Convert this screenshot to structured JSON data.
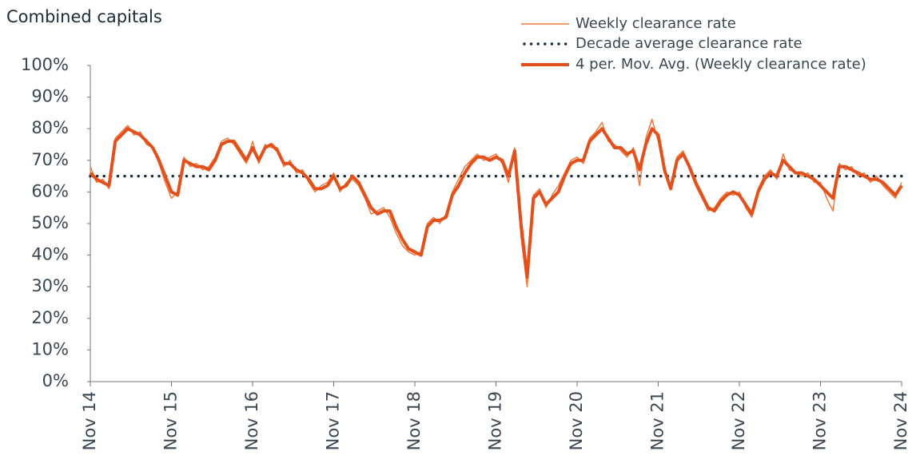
{
  "chart_data": {
    "type": "line",
    "title": "Combined capitals",
    "x": [
      0,
      4,
      8,
      12,
      16,
      20,
      24,
      28,
      32,
      36,
      40,
      44,
      48,
      52,
      56,
      60,
      64,
      68,
      72,
      76,
      80,
      84,
      88,
      92,
      96,
      100,
      104,
      108,
      112,
      116,
      120,
      124,
      128,
      132,
      136,
      140,
      144,
      148,
      152,
      156,
      160,
      164,
      168,
      172,
      176,
      180,
      184,
      188,
      192,
      196,
      200,
      204,
      208,
      212,
      216,
      220,
      224,
      228,
      232,
      236,
      240,
      244,
      248,
      252,
      256,
      260,
      264,
      268,
      272,
      276,
      280,
      284,
      288,
      292,
      296,
      300,
      304,
      308,
      312,
      316,
      320,
      324,
      328,
      332,
      336,
      340,
      344,
      348,
      352,
      356,
      360,
      364,
      368,
      372,
      376,
      380,
      384,
      388,
      392,
      396,
      400,
      404,
      408,
      412,
      416,
      420,
      424,
      428,
      432,
      436,
      440,
      444,
      448,
      452,
      456,
      460,
      464,
      468,
      472,
      476,
      480,
      484,
      488,
      492,
      496,
      500,
      504,
      508,
      512,
      516,
      520
    ],
    "series": [
      {
        "name": "Weekly clearance rate",
        "color": "#f07a3c",
        "width": 1.5,
        "values": [
          68,
          63,
          64,
          61,
          77,
          79,
          81,
          78,
          79,
          75,
          74,
          69,
          63,
          58,
          60,
          71,
          68,
          69,
          67,
          68,
          71,
          76,
          77,
          75,
          72,
          69,
          76,
          69,
          75,
          74,
          74,
          68,
          70,
          66,
          67,
          63,
          60,
          62,
          63,
          66,
          60,
          63,
          64,
          62,
          58,
          53,
          54,
          55,
          52,
          47,
          43,
          41,
          40,
          41,
          50,
          52,
          50,
          53,
          60,
          64,
          68,
          70,
          72,
          70,
          71,
          72,
          69,
          63,
          74,
          46,
          30,
          59,
          61,
          55,
          59,
          62,
          66,
          70,
          71,
          69,
          77,
          79,
          82,
          76,
          75,
          73,
          71,
          74,
          62,
          77,
          83,
          76,
          66,
          62,
          71,
          73,
          67,
          62,
          58,
          54,
          55,
          58,
          60,
          59,
          60,
          55,
          52,
          61,
          65,
          67,
          64,
          72,
          67,
          66,
          65,
          66,
          63,
          63,
          58,
          54,
          69,
          67,
          68,
          65,
          66,
          63,
          65,
          62,
          60,
          58,
          63
        ]
      },
      {
        "name": "4 per. Mov. Avg. (Weekly clearance rate)",
        "color": "#e4501c",
        "width": 4,
        "values": [
          66,
          64,
          63,
          62,
          76,
          78,
          80,
          79,
          78,
          76,
          74,
          70,
          65,
          60,
          59,
          70,
          69,
          68,
          68,
          67,
          70,
          75,
          76,
          76,
          73,
          70,
          74,
          70,
          74,
          75,
          73,
          69,
          69,
          67,
          66,
          64,
          61,
          61,
          62,
          65,
          61,
          62,
          65,
          63,
          59,
          55,
          53,
          54,
          54,
          49,
          45,
          42,
          41,
          40,
          49,
          51,
          51,
          52,
          59,
          62,
          66,
          69,
          71,
          71,
          70,
          71,
          70,
          65,
          73,
          50,
          33,
          58,
          60,
          56,
          58,
          60,
          65,
          69,
          70,
          70,
          76,
          78,
          80,
          77,
          74,
          74,
          72,
          73,
          67,
          75,
          80,
          78,
          67,
          61,
          70,
          72,
          68,
          63,
          59,
          55,
          54,
          57,
          59,
          60,
          59,
          56,
          53,
          60,
          64,
          66,
          65,
          70,
          68,
          66,
          66,
          65,
          64,
          62,
          60,
          58,
          68,
          68,
          67,
          66,
          65,
          64,
          64,
          63,
          61,
          59,
          62
        ]
      }
    ],
    "reference": {
      "name": "Decade average clearance rate",
      "value": 65,
      "color": "#1c2b39"
    },
    "xlim": [
      0,
      520
    ],
    "xticks": [
      {
        "value": 0,
        "label": "Nov 14"
      },
      {
        "value": 52,
        "label": "Nov 15"
      },
      {
        "value": 104,
        "label": "Nov 16"
      },
      {
        "value": 156,
        "label": "Nov 17"
      },
      {
        "value": 208,
        "label": "Nov 18"
      },
      {
        "value": 260,
        "label": "Nov 19"
      },
      {
        "value": 312,
        "label": "Nov 20"
      },
      {
        "value": 364,
        "label": "Nov 21"
      },
      {
        "value": 416,
        "label": "Nov 22"
      },
      {
        "value": 468,
        "label": "Nov 23"
      },
      {
        "value": 520,
        "label": "Nov 24"
      }
    ],
    "ylim": [
      0,
      100
    ],
    "yticks": [
      {
        "value": 0,
        "label": "0%"
      },
      {
        "value": 10,
        "label": "10%"
      },
      {
        "value": 20,
        "label": "20%"
      },
      {
        "value": 30,
        "label": "30%"
      },
      {
        "value": 40,
        "label": "40%"
      },
      {
        "value": 50,
        "label": "50%"
      },
      {
        "value": 60,
        "label": "60%"
      },
      {
        "value": 70,
        "label": "70%"
      },
      {
        "value": 80,
        "label": "80%"
      },
      {
        "value": 90,
        "label": "90%"
      },
      {
        "value": 100,
        "label": "100%"
      }
    ]
  }
}
